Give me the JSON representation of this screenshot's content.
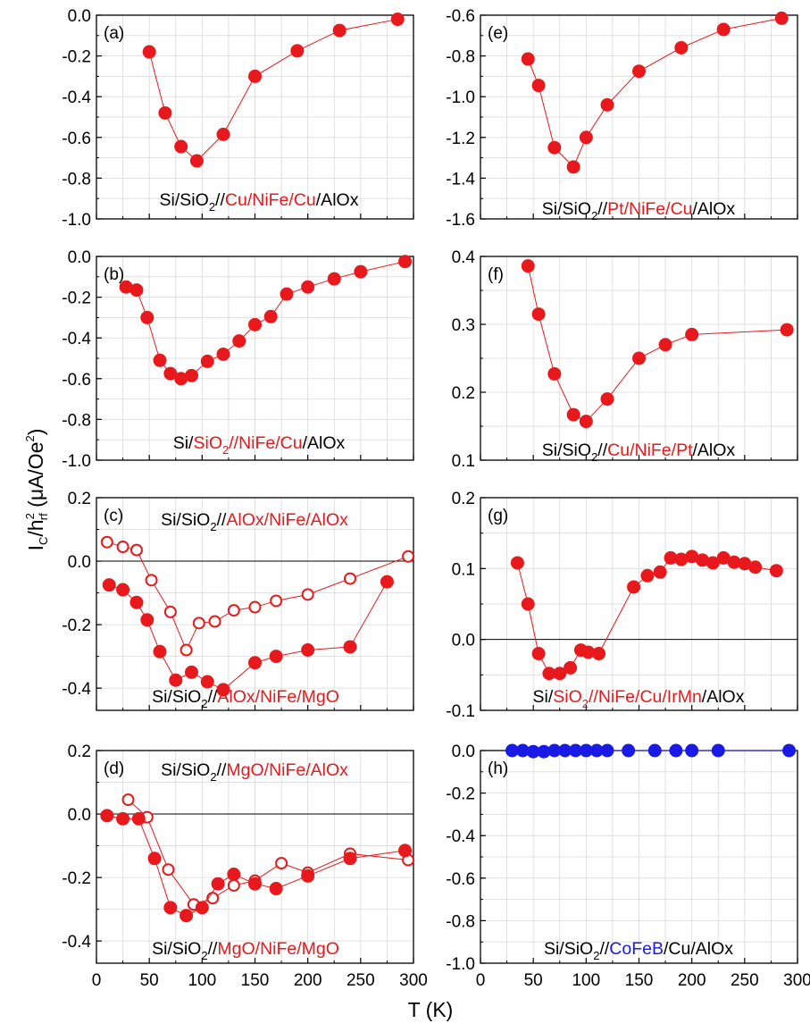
{
  "figure": {
    "ylabel": {
      "main": "I",
      "sub1": "C",
      "slash": "/h",
      "sup": "2",
      "sub2": "rf",
      "unit_open": " (μA/Oe",
      "unit_sup": "2",
      "unit_close": ")"
    },
    "xlabel": "T (K)"
  },
  "colors": {
    "red": "#e8191c",
    "blue": "#1a1ae6",
    "black": "#000000"
  },
  "chart_data": [
    {
      "panel": "(a)",
      "type": "scatter-line",
      "sample_label": [
        {
          "text": "Si/SiO",
          "color": "black"
        },
        {
          "text": "2",
          "sub": true,
          "color": "black"
        },
        {
          "text": "//",
          "color": "black"
        },
        {
          "text": "Cu/NiFe/Cu",
          "color": "red"
        },
        {
          "text": "/AlOx",
          "color": "black"
        }
      ],
      "xlim": [
        0,
        300
      ],
      "ylim": [
        -1.0,
        0.0
      ],
      "yticks": [
        0.0,
        -0.2,
        -0.4,
        -0.6,
        -0.8,
        -1.0
      ],
      "ytick_labels": [
        "0.0",
        "-0.2",
        "-0.4",
        "-0.6",
        "-0.8",
        "-1.0"
      ],
      "zero_line": false,
      "series": [
        {
          "color": "red",
          "filled": true,
          "x": [
            50,
            65,
            80,
            95,
            120,
            150,
            190,
            230,
            285
          ],
          "y": [
            -0.18,
            -0.48,
            -0.645,
            -0.715,
            -0.585,
            -0.3,
            -0.175,
            -0.075,
            -0.02
          ]
        }
      ]
    },
    {
      "panel": "(b)",
      "type": "scatter-line",
      "sample_label": [
        {
          "text": "Si/",
          "color": "black"
        },
        {
          "text": "SiO",
          "color": "red"
        },
        {
          "text": "2",
          "sub": true,
          "color": "red"
        },
        {
          "text": "//NiFe/Cu",
          "color": "red"
        },
        {
          "text": "/AlOx",
          "color": "black"
        }
      ],
      "xlim": [
        0,
        300
      ],
      "ylim": [
        -1.0,
        0.0
      ],
      "yticks": [
        0.0,
        -0.2,
        -0.4,
        -0.6,
        -0.8,
        -1.0
      ],
      "ytick_labels": [
        "0.0",
        "-0.2",
        "-0.4",
        "-0.6",
        "-0.8",
        "-1.0"
      ],
      "zero_line": false,
      "series": [
        {
          "color": "red",
          "filled": true,
          "x": [
            28,
            38,
            48,
            60,
            70,
            80,
            90,
            105,
            120,
            135,
            150,
            165,
            180,
            200,
            225,
            250,
            292
          ],
          "y": [
            -0.15,
            -0.165,
            -0.3,
            -0.51,
            -0.575,
            -0.6,
            -0.585,
            -0.515,
            -0.48,
            -0.415,
            -0.335,
            -0.295,
            -0.185,
            -0.15,
            -0.11,
            -0.075,
            -0.025
          ]
        }
      ]
    },
    {
      "panel": "(c)",
      "type": "scatter-line",
      "sample_label_top": [
        {
          "text": "Si/SiO",
          "color": "black"
        },
        {
          "text": "2",
          "sub": true,
          "color": "black"
        },
        {
          "text": "//",
          "color": "black"
        },
        {
          "text": "AlOx/NiFe/AlOx",
          "color": "red"
        }
      ],
      "sample_label": [
        {
          "text": "Si/SiO",
          "color": "black"
        },
        {
          "text": "2",
          "sub": true,
          "color": "black"
        },
        {
          "text": "//",
          "color": "black"
        },
        {
          "text": "AlOx/NiFe/MgO",
          "color": "red"
        }
      ],
      "xlim": [
        0,
        300
      ],
      "ylim": [
        -0.47,
        0.2
      ],
      "yticks": [
        0.2,
        0.0,
        -0.2,
        -0.4
      ],
      "ytick_labels": [
        "0.2",
        "0.0",
        "-0.2",
        "-0.4"
      ],
      "zero_line": true,
      "series": [
        {
          "color": "red",
          "filled": false,
          "x": [
            10,
            25,
            38,
            52,
            70,
            85,
            97,
            112,
            130,
            150,
            170,
            200,
            240,
            295
          ],
          "y": [
            0.06,
            0.045,
            0.035,
            -0.06,
            -0.16,
            -0.28,
            -0.195,
            -0.19,
            -0.155,
            -0.145,
            -0.125,
            -0.105,
            -0.055,
            0.015
          ]
        },
        {
          "color": "red",
          "filled": true,
          "x": [
            12,
            25,
            38,
            48,
            60,
            75,
            90,
            105,
            120,
            150,
            170,
            200,
            240,
            275
          ],
          "y": [
            -0.075,
            -0.09,
            -0.13,
            -0.185,
            -0.285,
            -0.375,
            -0.35,
            -0.38,
            -0.405,
            -0.32,
            -0.3,
            -0.28,
            -0.27,
            -0.065
          ]
        }
      ]
    },
    {
      "panel": "(d)",
      "type": "scatter-line",
      "sample_label_top": [
        {
          "text": "Si/SiO",
          "color": "black"
        },
        {
          "text": "2",
          "sub": true,
          "color": "black"
        },
        {
          "text": "//",
          "color": "black"
        },
        {
          "text": "MgO/NiFe/AlOx",
          "color": "red"
        }
      ],
      "sample_label": [
        {
          "text": "Si/SiO",
          "color": "black"
        },
        {
          "text": "2",
          "sub": true,
          "color": "black"
        },
        {
          "text": "//",
          "color": "black"
        },
        {
          "text": "MgO/NiFe/MgO",
          "color": "red"
        }
      ],
      "xlim": [
        0,
        300
      ],
      "ylim": [
        -0.47,
        0.2
      ],
      "yticks": [
        0.2,
        0.0,
        -0.2,
        -0.4
      ],
      "ytick_labels": [
        "0.2",
        "0.0",
        "-0.2",
        "-0.4"
      ],
      "zero_line": true,
      "series": [
        {
          "color": "red",
          "filled": false,
          "x": [
            30,
            48,
            68,
            92,
            110,
            130,
            150,
            175,
            200,
            240,
            295
          ],
          "y": [
            0.045,
            -0.01,
            -0.175,
            -0.285,
            -0.265,
            -0.225,
            -0.21,
            -0.155,
            -0.185,
            -0.125,
            -0.145
          ]
        },
        {
          "color": "red",
          "filled": true,
          "x": [
            10,
            25,
            40,
            55,
            70,
            85,
            100,
            115,
            130,
            150,
            170,
            200,
            240,
            292
          ],
          "y": [
            -0.005,
            -0.015,
            -0.015,
            -0.14,
            -0.295,
            -0.32,
            -0.295,
            -0.22,
            -0.19,
            -0.22,
            -0.235,
            -0.195,
            -0.14,
            -0.115
          ]
        }
      ]
    },
    {
      "panel": "(e)",
      "type": "scatter-line",
      "sample_label": [
        {
          "text": "Si/SiO",
          "color": "black"
        },
        {
          "text": "2",
          "sub": true,
          "color": "black"
        },
        {
          "text": "//",
          "color": "black"
        },
        {
          "text": "Pt/NiFe/Cu",
          "color": "red"
        },
        {
          "text": "/AlOx",
          "color": "black"
        }
      ],
      "xlim": [
        0,
        300
      ],
      "ylim": [
        -1.6,
        -0.6
      ],
      "yticks": [
        -0.6,
        -0.8,
        -1.0,
        -1.2,
        -1.4,
        -1.6
      ],
      "ytick_labels": [
        "-0.6",
        "-0.8",
        "-1.0",
        "-1.2",
        "-1.4",
        "-1.6"
      ],
      "zero_line": false,
      "series": [
        {
          "color": "red",
          "filled": true,
          "x": [
            45,
            55,
            70,
            88,
            100,
            120,
            150,
            190,
            230,
            285
          ],
          "y": [
            -0.815,
            -0.945,
            -1.25,
            -1.345,
            -1.2,
            -1.04,
            -0.875,
            -0.76,
            -0.67,
            -0.615
          ]
        }
      ]
    },
    {
      "panel": "(f)",
      "type": "scatter-line",
      "sample_label": [
        {
          "text": "Si/SiO",
          "color": "black"
        },
        {
          "text": "2",
          "sub": true,
          "color": "black"
        },
        {
          "text": "//",
          "color": "black"
        },
        {
          "text": "Cu/NiFe/Pt",
          "color": "red"
        },
        {
          "text": "/AlOx",
          "color": "black"
        }
      ],
      "xlim": [
        0,
        300
      ],
      "ylim": [
        0.1,
        0.4
      ],
      "yticks": [
        0.4,
        0.3,
        0.2,
        0.1
      ],
      "ytick_labels": [
        "0.4",
        "0.3",
        "0.2",
        "0.1"
      ],
      "zero_line": false,
      "series": [
        {
          "color": "red",
          "filled": true,
          "x": [
            45,
            55,
            70,
            88,
            100,
            120,
            150,
            175,
            200,
            290
          ],
          "y": [
            0.386,
            0.315,
            0.227,
            0.167,
            0.157,
            0.19,
            0.25,
            0.27,
            0.285,
            0.292
          ]
        }
      ]
    },
    {
      "panel": "(g)",
      "type": "scatter-line",
      "sample_label": [
        {
          "text": "Si/",
          "color": "black"
        },
        {
          "text": "SiO",
          "color": "red"
        },
        {
          "text": "2",
          "sub": true,
          "color": "red"
        },
        {
          "text": "//NiFe/Cu/IrMn",
          "color": "red"
        },
        {
          "text": "/AlOx",
          "color": "black"
        }
      ],
      "xlim": [
        0,
        300
      ],
      "ylim": [
        -0.1,
        0.2
      ],
      "yticks": [
        0.2,
        0.1,
        0.0,
        -0.1
      ],
      "ytick_labels": [
        "0.2",
        "0.1",
        "0.0",
        "-0.1"
      ],
      "zero_line": true,
      "series": [
        {
          "color": "red",
          "filled": true,
          "x": [
            35,
            45,
            55,
            65,
            75,
            85,
            95,
            102,
            112,
            145,
            158,
            170,
            180,
            190,
            200,
            210,
            220,
            230,
            240,
            250,
            260,
            280
          ],
          "y": [
            0.108,
            0.05,
            -0.02,
            -0.048,
            -0.048,
            -0.04,
            -0.015,
            -0.018,
            -0.02,
            0.074,
            0.09,
            0.095,
            0.115,
            0.113,
            0.117,
            0.112,
            0.108,
            0.115,
            0.109,
            0.107,
            0.102,
            0.097
          ]
        }
      ]
    },
    {
      "panel": "(h)",
      "type": "scatter-line",
      "sample_label": [
        {
          "text": "Si/SiO",
          "color": "black"
        },
        {
          "text": "2",
          "sub": true,
          "color": "black"
        },
        {
          "text": "//",
          "color": "black"
        },
        {
          "text": "CoFeB",
          "color": "blue"
        },
        {
          "text": "/Cu/AlOx",
          "color": "black"
        }
      ],
      "xlim": [
        0,
        300
      ],
      "ylim": [
        -1.0,
        0.0
      ],
      "yticks": [
        0.0,
        -0.2,
        -0.4,
        -0.6,
        -0.8,
        -1.0
      ],
      "ytick_labels": [
        "0.0",
        "-0.2",
        "-0.4",
        "-0.6",
        "-0.8",
        "-1.0"
      ],
      "zero_line": false,
      "series": [
        {
          "color": "blue",
          "filled": true,
          "x": [
            30,
            40,
            50,
            60,
            70,
            80,
            90,
            100,
            110,
            120,
            140,
            165,
            185,
            200,
            225,
            292
          ],
          "y": [
            0.0,
            0.0,
            -0.005,
            -0.005,
            0.0,
            0.0,
            0.0,
            0.0,
            0.0,
            0.0,
            0.0,
            0.0,
            0.0,
            0.0,
            0.0,
            0.0
          ]
        }
      ]
    }
  ],
  "xticks": [
    0,
    50,
    100,
    150,
    200,
    250,
    300
  ],
  "xtick_labels": [
    "0",
    "50",
    "100",
    "150",
    "200",
    "250",
    "300"
  ]
}
